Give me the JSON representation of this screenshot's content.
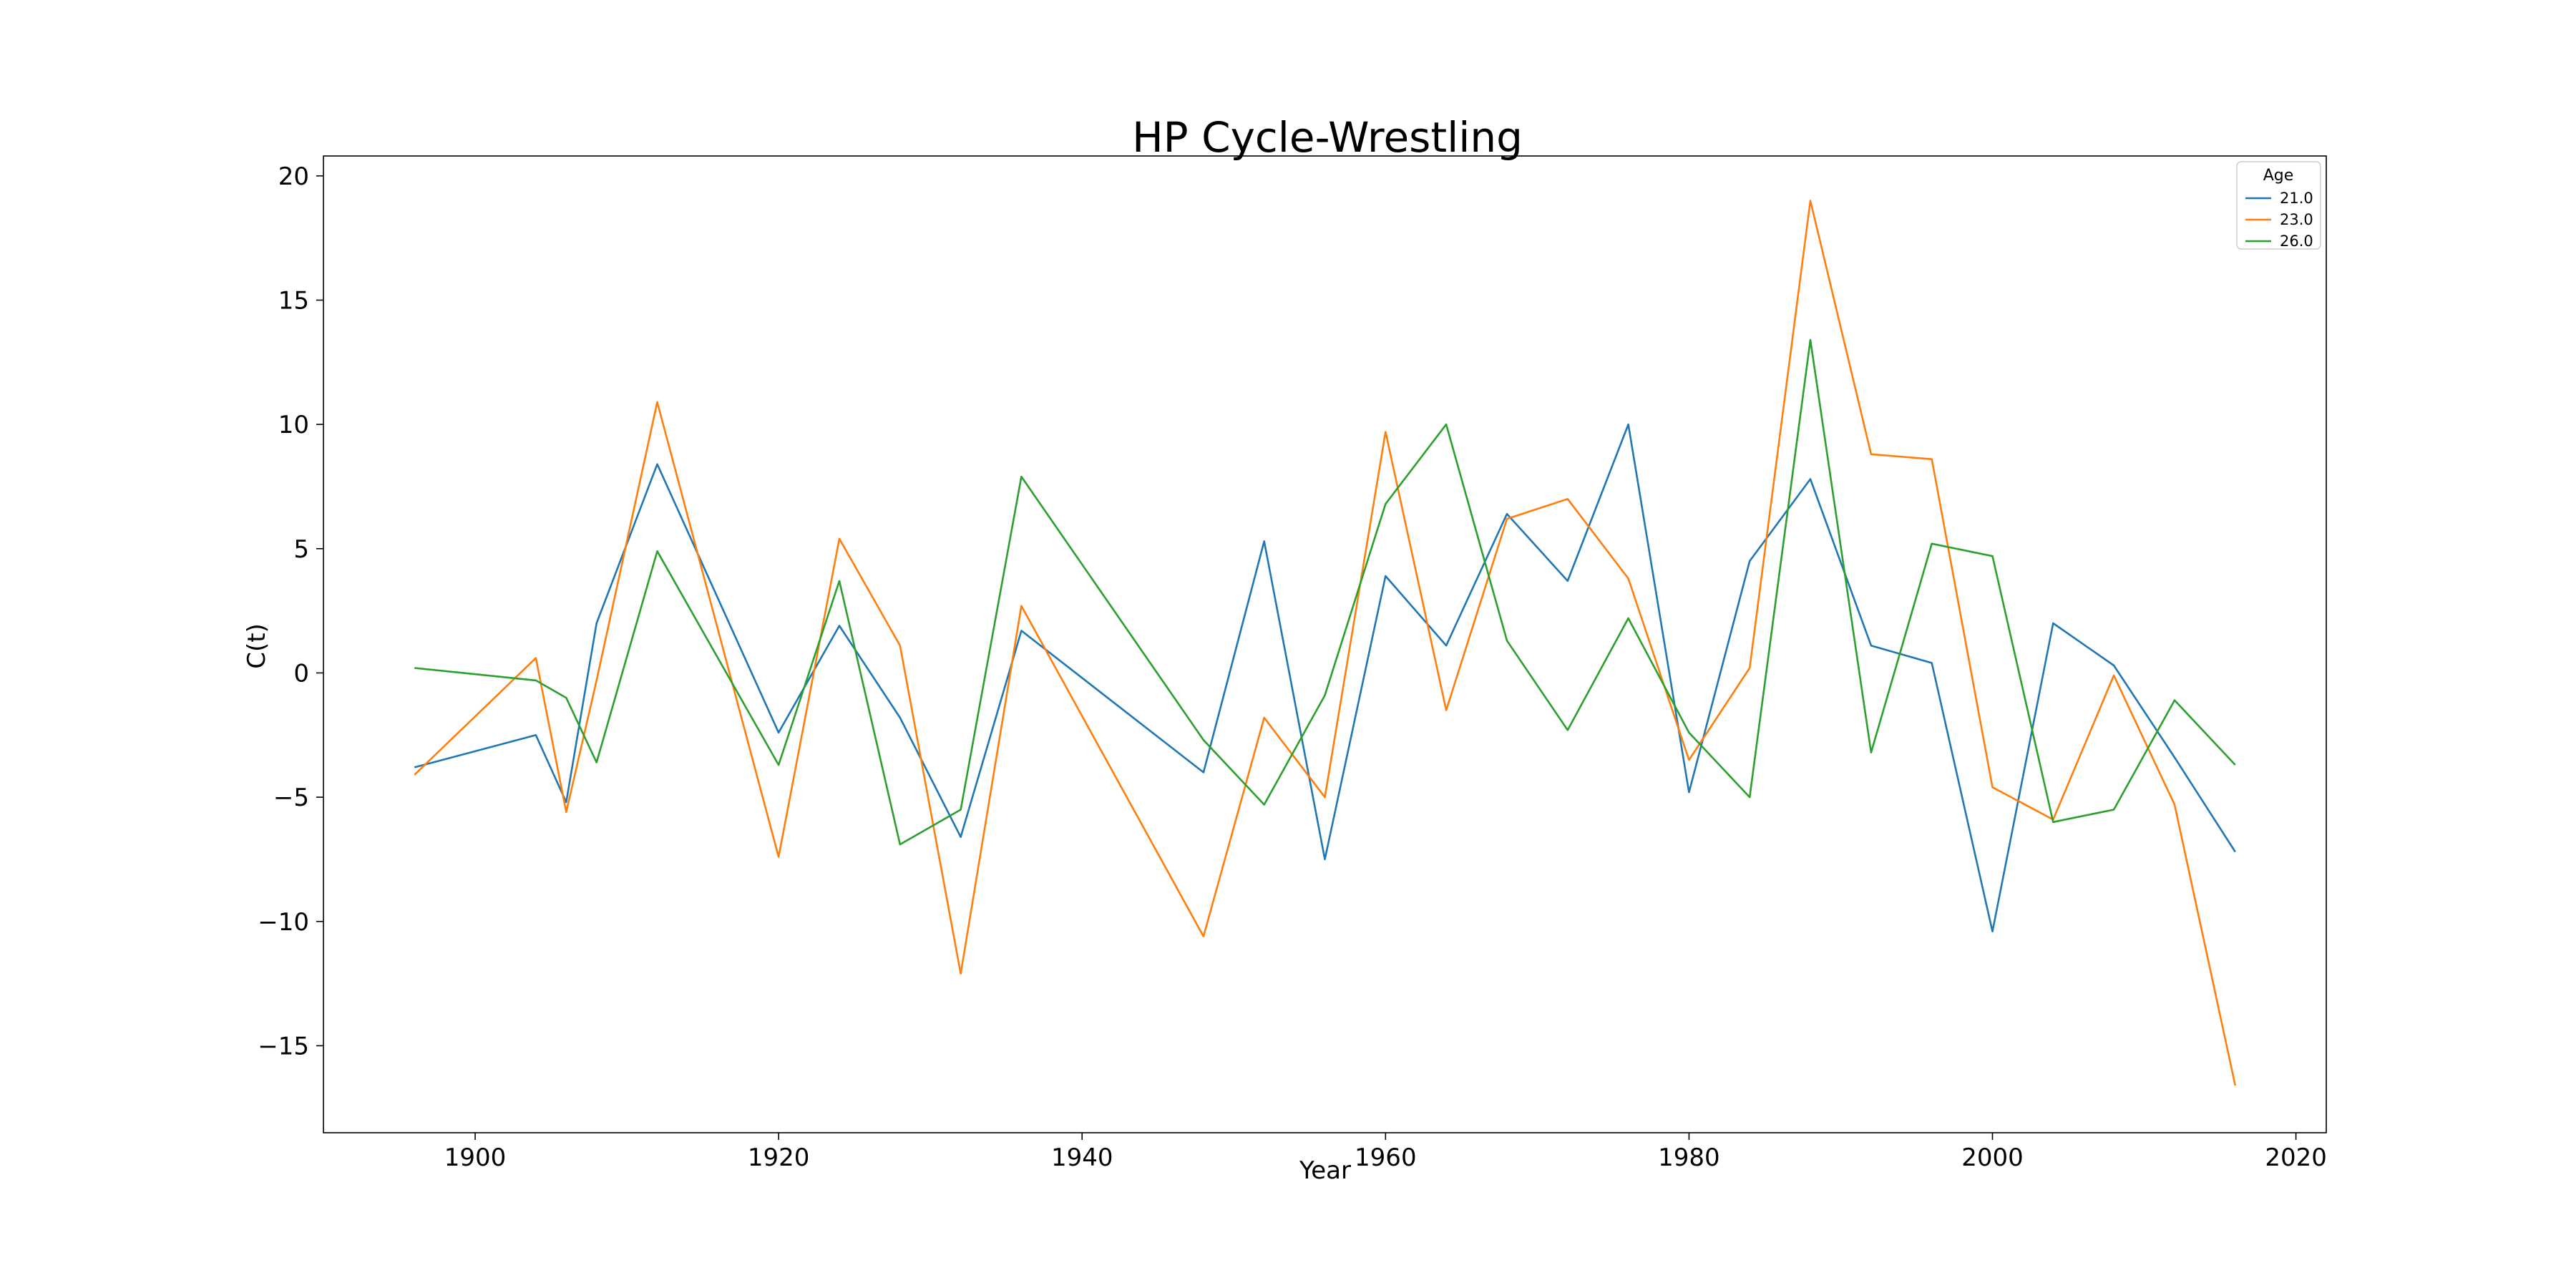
{
  "chart_data": {
    "type": "line",
    "title": "HP Cycle-Wrestling",
    "xlabel": "Year",
    "ylabel": "C(t)",
    "xlim": [
      1890,
      2022
    ],
    "ylim": [
      -18.5,
      20.8
    ],
    "xticks": [
      1900,
      1920,
      1940,
      1960,
      1980,
      2000,
      2020
    ],
    "yticks": [
      20,
      15,
      10,
      5,
      0,
      -5,
      -10,
      -15
    ],
    "xtick_labels": [
      "1900",
      "1920",
      "1940",
      "1960",
      "1980",
      "2000",
      "2020"
    ],
    "ytick_labels": [
      "20",
      "15",
      "10",
      "5",
      "0",
      "−5",
      "−10",
      "−15"
    ],
    "grid": false,
    "legend": {
      "title": "Age",
      "placement": "top-right"
    },
    "series": [
      {
        "name": "21.0",
        "color": "#1f77b4",
        "x": [
          1896,
          1904,
          1906,
          1908,
          1912,
          1920,
          1924,
          1928,
          1932,
          1936,
          1948,
          1952,
          1956,
          1960,
          1964,
          1968,
          1972,
          1976,
          1980,
          1984,
          1988,
          1992,
          1996,
          2000,
          2004,
          2008,
          2012,
          2016
        ],
        "y": [
          -3.8,
          -2.5,
          -5.2,
          2.0,
          8.4,
          -2.4,
          1.9,
          -1.8,
          -6.6,
          1.7,
          -4.0,
          5.3,
          -7.5,
          3.9,
          1.1,
          6.4,
          3.7,
          10.0,
          -4.8,
          4.5,
          7.8,
          1.1,
          0.4,
          -10.4,
          2.0,
          0.3,
          -3.4,
          -7.2
        ]
      },
      {
        "name": "23.0",
        "color": "#ff7f0e",
        "x": [
          1896,
          1904,
          1906,
          1908,
          1912,
          1920,
          1924,
          1928,
          1932,
          1936,
          1948,
          1952,
          1956,
          1960,
          1964,
          1968,
          1972,
          1976,
          1980,
          1984,
          1988,
          1992,
          1996,
          2000,
          2004,
          2008,
          2012,
          2016
        ],
        "y": [
          -4.1,
          0.6,
          -5.6,
          -0.3,
          10.9,
          -7.4,
          5.4,
          1.1,
          -12.1,
          2.7,
          -10.6,
          -1.8,
          -5.0,
          9.7,
          -1.5,
          6.2,
          7.0,
          3.8,
          -3.5,
          0.2,
          19.0,
          8.8,
          8.6,
          -4.6,
          -5.9,
          -0.1,
          -5.3,
          -16.6
        ]
      },
      {
        "name": "26.0",
        "color": "#2ca02c",
        "x": [
          1896,
          1904,
          1906,
          1908,
          1912,
          1920,
          1924,
          1928,
          1932,
          1936,
          1948,
          1952,
          1956,
          1960,
          1964,
          1968,
          1972,
          1976,
          1980,
          1984,
          1988,
          1992,
          1996,
          2000,
          2004,
          2008,
          2012,
          2016
        ],
        "y": [
          0.2,
          -0.3,
          -1.0,
          -3.6,
          4.9,
          -3.7,
          3.7,
          -6.9,
          -5.5,
          7.9,
          -2.7,
          -5.3,
          -0.9,
          6.8,
          10.0,
          1.3,
          -2.3,
          2.2,
          -2.4,
          -5.0,
          13.4,
          -3.2,
          5.2,
          4.7,
          -6.0,
          -5.5,
          -1.1,
          -3.7
        ]
      }
    ]
  }
}
